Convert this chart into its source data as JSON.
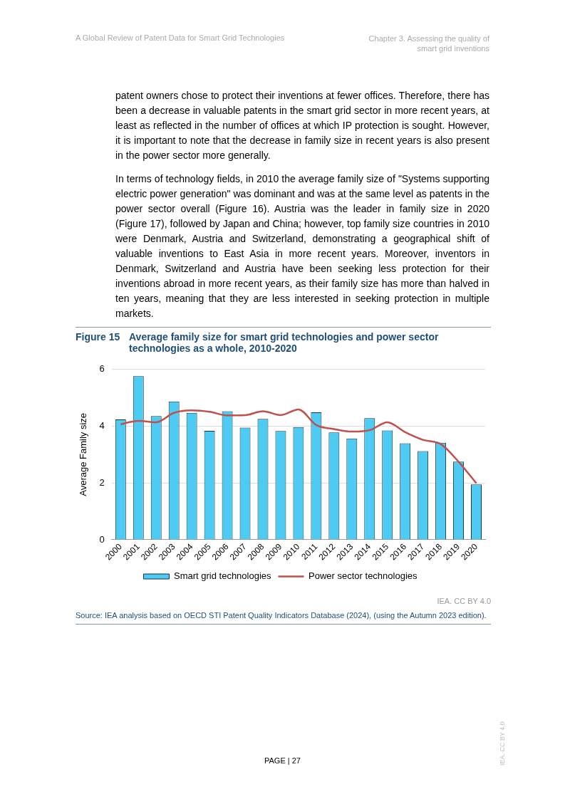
{
  "chart_data": {
    "type": "bar",
    "title": "Average family size for smart grid technologies and power sector technologies as a whole, 2010-2020",
    "subtitle": "Figure 15",
    "ylabel": "Average Family size",
    "categories": [
      "2000",
      "2001",
      "2002",
      "2003",
      "2004",
      "2005",
      "2006",
      "2007",
      "2008",
      "2009",
      "2010",
      "2011",
      "2012",
      "2013",
      "2014",
      "2015",
      "2016",
      "2017",
      "2018",
      "2019",
      "2020"
    ],
    "series": [
      {
        "name": "Smart grid technologies",
        "color": "#4dcbf3",
        "values": [
          4.24,
          5.76,
          4.36,
          4.87,
          4.47,
          3.84,
          4.53,
          3.95,
          4.26,
          3.83,
          3.97,
          4.49,
          3.78,
          3.57,
          4.28,
          3.85,
          3.4,
          3.12,
          3.42,
          2.75,
          1.95
        ]
      },
      {
        "name": "Power sector technologies",
        "type": "line",
        "color": "#c0504d",
        "values": [
          4.07,
          4.19,
          4.14,
          4.47,
          4.56,
          4.51,
          4.38,
          4.39,
          4.53,
          4.39,
          4.59,
          4.04,
          3.9,
          3.81,
          3.86,
          4.14,
          3.79,
          3.52,
          3.37,
          2.75,
          1.99
        ]
      }
    ],
    "ylim": [
      0,
      6
    ],
    "yticks": [
      0,
      2,
      4,
      6
    ],
    "grid": "y",
    "legend": "bottom",
    "marker": "none",
    "line_style": "solid",
    "annotations": [
      "A Global Review of Patent Data for Smart Grid Technologies",
      "Chapter 3. Assessing the quality of smart grid inventions",
      "patent owners chose to protect their inventions at fewer offices. Therefore, there has been a decrease in valuable patents in the smart grid sector in more recent years, at least as reflected in the number of offices at which IP protection is sought. However, it is important to note that the decrease in family size in recent years is also present in the power sector more generally.",
      "In terms of technology fields, in 2010 the average family size of \"Systems supporting electric power generation\" was dominant and was at the same level as patents in the power sector overall (Figure 16). Austria was the leader in family size in 2020 (Figure 17), followed by Japan and China; however, top family size countries in 2010 were Denmark, Austria and Switzerland, demonstrating a geographical shift of valuable inventions to East Asia in more recent years. Moreover, inventors in Denmark, Switzerland and Austria have been seeking less protection for their inventions abroad in more recent years, as their family size has more than halved in ten years, meaning that they are less interested in seeking protection in multiple markets.",
      "IEA. CC BY 4.0",
      "Source: IEA analysis based on OECD STI Patent Quality Indicators Database (2024), (using the Autumn 2023 edition).",
      "PAGE | 27",
      "IEA. CC BY 4.0"
    ]
  }
}
